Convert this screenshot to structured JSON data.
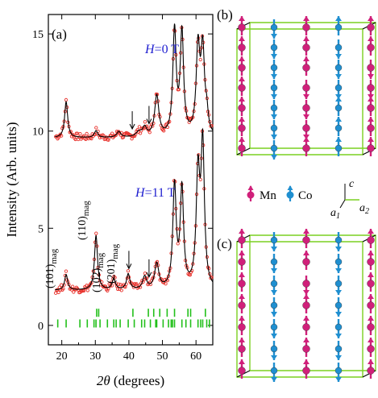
{
  "colors": {
    "observed": "#e8302a",
    "fit": "#000000",
    "bragg": "#22c01a",
    "mn": "#d0207a",
    "co": "#1f8fd0",
    "field_text": "#1f1fd0",
    "cell_edges": "#7ad020"
  },
  "panel_a": {
    "label": "(a)",
    "field_labels": [
      {
        "H": "H",
        "rest": "=0 T"
      },
      {
        "H": "H",
        "rest": "=11 T"
      }
    ],
    "peak_annotations": [
      {
        "main": "(101)",
        "sub": "mag",
        "x": 21.3
      },
      {
        "main": "(110)",
        "sub": "mag",
        "x": 30.2
      },
      {
        "main": "(102)",
        "sub": "mag",
        "x": 35.5
      },
      {
        "main": "(201)",
        "sub": "mag",
        "x": 39.8
      }
    ]
  },
  "panel_b": {
    "label": "(b)"
  },
  "panel_c": {
    "label": "(c)"
  },
  "legend": {
    "mn": "Mn",
    "co": "Co",
    "axes": {
      "c": "c",
      "a1_main": "a",
      "a1_sub": "1",
      "a2_main": "a",
      "a2_sub": "2"
    }
  },
  "chart_data": {
    "type": "line",
    "xlabel_main": "2θ",
    "xlabel_rest": " (degrees)",
    "ylabel": "Intensity (Arb. units)",
    "xlim": [
      16,
      65
    ],
    "ylim": [
      -1,
      16
    ],
    "xticks": [
      20,
      30,
      40,
      50,
      60
    ],
    "yticks": [
      0,
      5,
      10,
      15
    ],
    "series": [
      {
        "baseline": 9.65,
        "peaks": [
          [
            21.3,
            1.85,
            0.55
          ],
          [
            30.2,
            0.35,
            0.6
          ],
          [
            37.0,
            0.3,
            0.7
          ],
          [
            43.0,
            0.25,
            1.0
          ],
          [
            44.7,
            0.45,
            0.7
          ],
          [
            48.3,
            2.1,
            0.75
          ],
          [
            53.6,
            5.4,
            0.6
          ],
          [
            55.8,
            5.25,
            0.6
          ],
          [
            60.6,
            4.4,
            0.65
          ],
          [
            62.0,
            4.3,
            0.65
          ],
          [
            63.2,
            0.9,
            0.5
          ]
        ],
        "arrows_at": [
          41.0,
          46.0
        ]
      },
      {
        "baseline": 1.8,
        "peaks": [
          [
            21.3,
            0.8,
            0.55
          ],
          [
            30.2,
            2.8,
            0.55
          ],
          [
            35.5,
            0.55,
            0.6
          ],
          [
            39.8,
            0.8,
            0.6
          ],
          [
            44.7,
            0.65,
            0.7
          ],
          [
            48.3,
            1.3,
            0.75
          ],
          [
            53.6,
            5.25,
            0.6
          ],
          [
            55.8,
            5.05,
            0.6
          ],
          [
            60.6,
            5.75,
            0.65
          ],
          [
            62.0,
            7.2,
            0.6
          ]
        ],
        "arrows_at": [
          40.0,
          46.0
        ]
      }
    ],
    "bragg_rows": [
      {
        "y": 0.65,
        "positions": [
          30.4,
          31.0,
          41.2,
          45.8,
          47.4,
          49.2,
          51.4,
          53.6,
          57.6,
          58.4,
          62.8
        ]
      },
      {
        "y": 0.1,
        "positions": [
          18.8,
          21.3,
          25.4,
          27.6,
          29.6,
          30.2,
          31.4,
          33.6,
          35.5,
          36.2,
          37.4,
          39.8,
          41.6,
          43.8,
          44.7,
          46.4,
          48.0,
          48.3,
          50.2,
          51.8,
          52.6,
          53.0,
          53.6,
          55.8,
          57.0,
          58.4,
          60.6,
          61.4,
          62.0,
          63.2,
          64.0
        ]
      }
    ]
  },
  "structure_b": {
    "columns": [
      {
        "kind": "mn",
        "pattern": [
          "up",
          "up",
          "up",
          "up",
          "up",
          "up",
          "up"
        ]
      },
      {
        "kind": "co",
        "pattern": [
          "down",
          "down",
          "down",
          "down",
          "down",
          "down",
          "down"
        ]
      },
      {
        "kind": "mn",
        "pattern": [
          "up",
          "up",
          "up",
          "down",
          "down",
          "down",
          "up"
        ]
      },
      {
        "kind": "co",
        "pattern": [
          "up",
          "down",
          "down",
          "down",
          "up",
          "up",
          "up"
        ]
      },
      {
        "kind": "mn",
        "pattern": [
          "up",
          "up",
          "down",
          "down",
          "up",
          "up",
          "up"
        ]
      }
    ]
  },
  "structure_c": {
    "columns": [
      {
        "kind": "mn",
        "pattern": [
          "up",
          "up",
          "up",
          "up",
          "up",
          "up",
          "up"
        ]
      },
      {
        "kind": "co",
        "pattern": [
          "down",
          "down",
          "down",
          "down",
          "down",
          "down",
          "down"
        ]
      },
      {
        "kind": "mn",
        "pattern": [
          "up",
          "up",
          "down",
          "up",
          "up",
          "up",
          "up"
        ]
      },
      {
        "kind": "co",
        "pattern": [
          "down",
          "down",
          "down",
          "down",
          "down",
          "down",
          "down"
        ]
      },
      {
        "kind": "mn",
        "pattern": [
          "up",
          "up",
          "up",
          "up",
          "up",
          "up",
          "up"
        ]
      }
    ]
  }
}
